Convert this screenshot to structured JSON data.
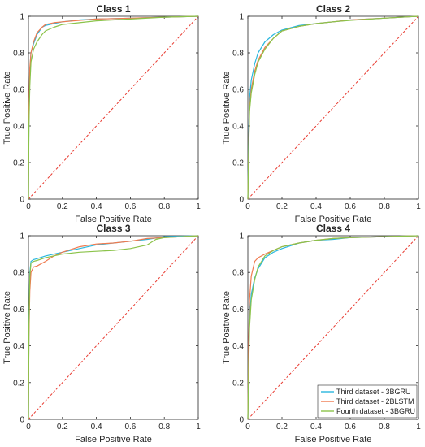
{
  "colors": {
    "series": [
      "#2ab7de",
      "#f07a4f",
      "#8bc34a"
    ],
    "diagonal": "#e8392f",
    "axis": "#262626"
  },
  "legend": {
    "location": "bottom-right",
    "panel_index": 3,
    "entries": [
      "Third dataset - 3BGRU",
      "Third dataset - 2BLSTM",
      "Fourth dataset - 3BGRU"
    ]
  },
  "chart_data": [
    {
      "type": "line",
      "title": "Class 1",
      "xlabel": "False Positive Rate",
      "ylabel": "True Positive Rate",
      "xlim": [
        0,
        1
      ],
      "ylim": [
        0,
        1
      ],
      "xticks": [
        "0",
        "0.2",
        "0.4",
        "0.6",
        "0.8",
        "1"
      ],
      "yticks": [
        "0",
        "0.2",
        "0.4",
        "0.6",
        "0.8",
        "1"
      ],
      "diagonal": [
        [
          0,
          0
        ],
        [
          1,
          1
        ]
      ],
      "series": [
        {
          "points": [
            [
              0,
              0
            ],
            [
              0.003,
              0.45
            ],
            [
              0.008,
              0.7
            ],
            [
              0.015,
              0.8
            ],
            [
              0.03,
              0.85
            ],
            [
              0.05,
              0.9
            ],
            [
              0.08,
              0.94
            ],
            [
              0.1,
              0.95
            ],
            [
              0.15,
              0.96
            ],
            [
              0.2,
              0.97
            ],
            [
              0.3,
              0.98
            ],
            [
              0.4,
              0.985
            ],
            [
              0.6,
              0.99
            ],
            [
              0.8,
              0.995
            ],
            [
              1,
              1
            ]
          ]
        },
        {
          "points": [
            [
              0,
              0
            ],
            [
              0.003,
              0.5
            ],
            [
              0.008,
              0.72
            ],
            [
              0.015,
              0.8
            ],
            [
              0.03,
              0.86
            ],
            [
              0.05,
              0.91
            ],
            [
              0.08,
              0.94
            ],
            [
              0.1,
              0.955
            ],
            [
              0.15,
              0.965
            ],
            [
              0.2,
              0.97
            ],
            [
              0.3,
              0.978
            ],
            [
              0.4,
              0.985
            ],
            [
              0.6,
              0.99
            ],
            [
              0.8,
              0.995
            ],
            [
              1,
              1
            ]
          ]
        },
        {
          "points": [
            [
              0,
              0
            ],
            [
              0.003,
              0.4
            ],
            [
              0.008,
              0.62
            ],
            [
              0.015,
              0.75
            ],
            [
              0.03,
              0.82
            ],
            [
              0.05,
              0.86
            ],
            [
              0.08,
              0.9
            ],
            [
              0.1,
              0.92
            ],
            [
              0.15,
              0.94
            ],
            [
              0.2,
              0.955
            ],
            [
              0.3,
              0.965
            ],
            [
              0.4,
              0.975
            ],
            [
              0.6,
              0.985
            ],
            [
              0.8,
              0.995
            ],
            [
              1,
              1
            ]
          ]
        }
      ]
    },
    {
      "type": "line",
      "title": "Class 2",
      "xlabel": "False Positive Rate",
      "ylabel": "True Positive Rate",
      "xlim": [
        0,
        1
      ],
      "ylim": [
        0,
        1
      ],
      "xticks": [
        "0",
        "0.2",
        "0.4",
        "0.6",
        "0.8",
        "1"
      ],
      "yticks": [
        "0",
        "0.2",
        "0.4",
        "0.6",
        "0.8",
        "1"
      ],
      "diagonal": [
        [
          0,
          0
        ],
        [
          1,
          1
        ]
      ],
      "series": [
        {
          "points": [
            [
              0,
              0
            ],
            [
              0.005,
              0.35
            ],
            [
              0.01,
              0.55
            ],
            [
              0.02,
              0.65
            ],
            [
              0.04,
              0.74
            ],
            [
              0.06,
              0.8
            ],
            [
              0.1,
              0.86
            ],
            [
              0.15,
              0.9
            ],
            [
              0.2,
              0.925
            ],
            [
              0.3,
              0.95
            ],
            [
              0.4,
              0.96
            ],
            [
              0.5,
              0.97
            ],
            [
              0.6,
              0.98
            ],
            [
              0.8,
              0.99
            ],
            [
              1,
              1
            ]
          ]
        },
        {
          "points": [
            [
              0,
              0
            ],
            [
              0.005,
              0.3
            ],
            [
              0.01,
              0.5
            ],
            [
              0.02,
              0.6
            ],
            [
              0.04,
              0.7
            ],
            [
              0.06,
              0.76
            ],
            [
              0.1,
              0.83
            ],
            [
              0.15,
              0.88
            ],
            [
              0.2,
              0.92
            ],
            [
              0.3,
              0.945
            ],
            [
              0.4,
              0.96
            ],
            [
              0.5,
              0.97
            ],
            [
              0.6,
              0.98
            ],
            [
              0.8,
              0.99
            ],
            [
              1,
              1
            ]
          ]
        },
        {
          "points": [
            [
              0,
              0
            ],
            [
              0.005,
              0.28
            ],
            [
              0.01,
              0.48
            ],
            [
              0.02,
              0.58
            ],
            [
              0.04,
              0.68
            ],
            [
              0.06,
              0.75
            ],
            [
              0.1,
              0.82
            ],
            [
              0.15,
              0.88
            ],
            [
              0.2,
              0.92
            ],
            [
              0.3,
              0.945
            ],
            [
              0.4,
              0.96
            ],
            [
              0.5,
              0.97
            ],
            [
              0.6,
              0.978
            ],
            [
              0.8,
              0.99
            ],
            [
              1,
              1
            ]
          ]
        }
      ]
    },
    {
      "type": "line",
      "title": "Class 3",
      "xlabel": "False Positive Rate",
      "ylabel": "True Positive Rate",
      "xlim": [
        0,
        1
      ],
      "ylim": [
        0,
        1
      ],
      "xticks": [
        "0",
        "0.2",
        "0.4",
        "0.6",
        "0.8",
        "1"
      ],
      "yticks": [
        "0",
        "0.2",
        "0.4",
        "0.6",
        "0.8",
        "1"
      ],
      "diagonal": [
        [
          0,
          0
        ],
        [
          1,
          1
        ]
      ],
      "series": [
        {
          "points": [
            [
              0,
              0
            ],
            [
              0.003,
              0.5
            ],
            [
              0.008,
              0.8
            ],
            [
              0.015,
              0.86
            ],
            [
              0.03,
              0.87
            ],
            [
              0.05,
              0.875
            ],
            [
              0.1,
              0.89
            ],
            [
              0.2,
              0.91
            ],
            [
              0.3,
              0.93
            ],
            [
              0.4,
              0.95
            ],
            [
              0.5,
              0.96
            ],
            [
              0.6,
              0.97
            ],
            [
              0.7,
              0.98
            ],
            [
              0.8,
              0.995
            ],
            [
              1,
              1
            ]
          ]
        },
        {
          "points": [
            [
              0,
              0
            ],
            [
              0.003,
              0.45
            ],
            [
              0.008,
              0.7
            ],
            [
              0.015,
              0.8
            ],
            [
              0.03,
              0.83
            ],
            [
              0.05,
              0.835
            ],
            [
              0.1,
              0.86
            ],
            [
              0.15,
              0.89
            ],
            [
              0.2,
              0.91
            ],
            [
              0.3,
              0.94
            ],
            [
              0.4,
              0.955
            ],
            [
              0.5,
              0.96
            ],
            [
              0.6,
              0.97
            ],
            [
              0.7,
              0.985
            ],
            [
              0.8,
              0.99
            ],
            [
              1,
              1
            ]
          ]
        },
        {
          "points": [
            [
              0,
              0
            ],
            [
              0.003,
              0.5
            ],
            [
              0.008,
              0.78
            ],
            [
              0.015,
              0.85
            ],
            [
              0.03,
              0.86
            ],
            [
              0.05,
              0.865
            ],
            [
              0.1,
              0.88
            ],
            [
              0.2,
              0.9
            ],
            [
              0.3,
              0.91
            ],
            [
              0.4,
              0.915
            ],
            [
              0.5,
              0.92
            ],
            [
              0.6,
              0.93
            ],
            [
              0.7,
              0.95
            ],
            [
              0.75,
              0.98
            ],
            [
              0.8,
              0.99
            ],
            [
              1,
              1
            ]
          ]
        }
      ]
    },
    {
      "type": "line",
      "title": "Class 4",
      "xlabel": "False Positive Rate",
      "ylabel": "True Positive Rate",
      "xlim": [
        0,
        1
      ],
      "ylim": [
        0,
        1
      ],
      "xticks": [
        "0",
        "0.2",
        "0.4",
        "0.6",
        "0.8",
        "1"
      ],
      "yticks": [
        "0",
        "0.2",
        "0.4",
        "0.6",
        "0.8",
        "1"
      ],
      "diagonal": [
        [
          0,
          0
        ],
        [
          1,
          1
        ]
      ],
      "series": [
        {
          "points": [
            [
              0,
              0
            ],
            [
              0.005,
              0.35
            ],
            [
              0.01,
              0.55
            ],
            [
              0.02,
              0.68
            ],
            [
              0.04,
              0.77
            ],
            [
              0.06,
              0.82
            ],
            [
              0.1,
              0.88
            ],
            [
              0.15,
              0.91
            ],
            [
              0.2,
              0.93
            ],
            [
              0.3,
              0.96
            ],
            [
              0.4,
              0.975
            ],
            [
              0.5,
              0.98
            ],
            [
              0.6,
              0.99
            ],
            [
              0.8,
              0.995
            ],
            [
              1,
              1
            ]
          ]
        },
        {
          "points": [
            [
              0,
              0
            ],
            [
              0.005,
              0.45
            ],
            [
              0.01,
              0.65
            ],
            [
              0.02,
              0.78
            ],
            [
              0.04,
              0.86
            ],
            [
              0.06,
              0.88
            ],
            [
              0.1,
              0.9
            ],
            [
              0.15,
              0.92
            ],
            [
              0.2,
              0.94
            ],
            [
              0.3,
              0.96
            ],
            [
              0.4,
              0.975
            ],
            [
              0.5,
              0.985
            ],
            [
              0.6,
              0.99
            ],
            [
              0.8,
              0.995
            ],
            [
              1,
              1
            ]
          ]
        },
        {
          "points": [
            [
              0,
              0
            ],
            [
              0.005,
              0.3
            ],
            [
              0.01,
              0.5
            ],
            [
              0.02,
              0.65
            ],
            [
              0.04,
              0.76
            ],
            [
              0.06,
              0.83
            ],
            [
              0.1,
              0.89
            ],
            [
              0.15,
              0.92
            ],
            [
              0.2,
              0.94
            ],
            [
              0.3,
              0.96
            ],
            [
              0.4,
              0.975
            ],
            [
              0.5,
              0.985
            ],
            [
              0.6,
              0.99
            ],
            [
              0.8,
              0.995
            ],
            [
              1,
              1
            ]
          ]
        }
      ]
    }
  ]
}
